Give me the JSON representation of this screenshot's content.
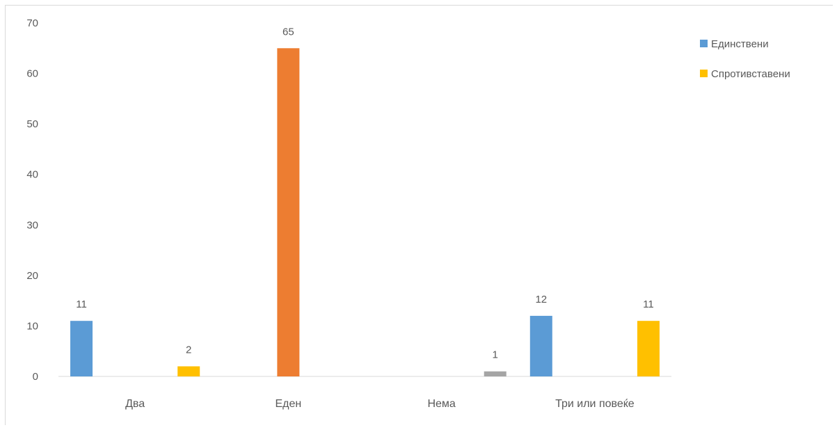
{
  "chart_data": {
    "type": "bar",
    "title": "",
    "xlabel": "",
    "ylabel": "",
    "ylim": [
      0,
      70
    ],
    "yticks": [
      0,
      10,
      20,
      30,
      40,
      50,
      60,
      70
    ],
    "grid": false,
    "legend_position": "top-right",
    "categories": [
      "Два",
      "Еден",
      "Нема",
      "Три или повеќе"
    ],
    "bars": [
      {
        "category": "Два",
        "slot": 0,
        "value": 11,
        "color": "#5b9bd5"
      },
      {
        "category": "Два",
        "slot": 2,
        "value": 2,
        "color": "#ffc000"
      },
      {
        "category": "Еден",
        "slot": 1,
        "value": 65,
        "color": "#ed7d31"
      },
      {
        "category": "Нема",
        "slot": 2,
        "value": 1,
        "color": "#a5a5a5"
      },
      {
        "category": "Три или повеќе",
        "slot": 0,
        "value": 12,
        "color": "#5b9bd5"
      },
      {
        "category": "Три или повеќе",
        "slot": 2,
        "value": 11,
        "color": "#ffc000"
      }
    ],
    "legend": [
      {
        "name": "Единствени",
        "color": "#5b9bd5"
      },
      {
        "name": "Спротивставени",
        "color": "#ffc000"
      }
    ]
  }
}
